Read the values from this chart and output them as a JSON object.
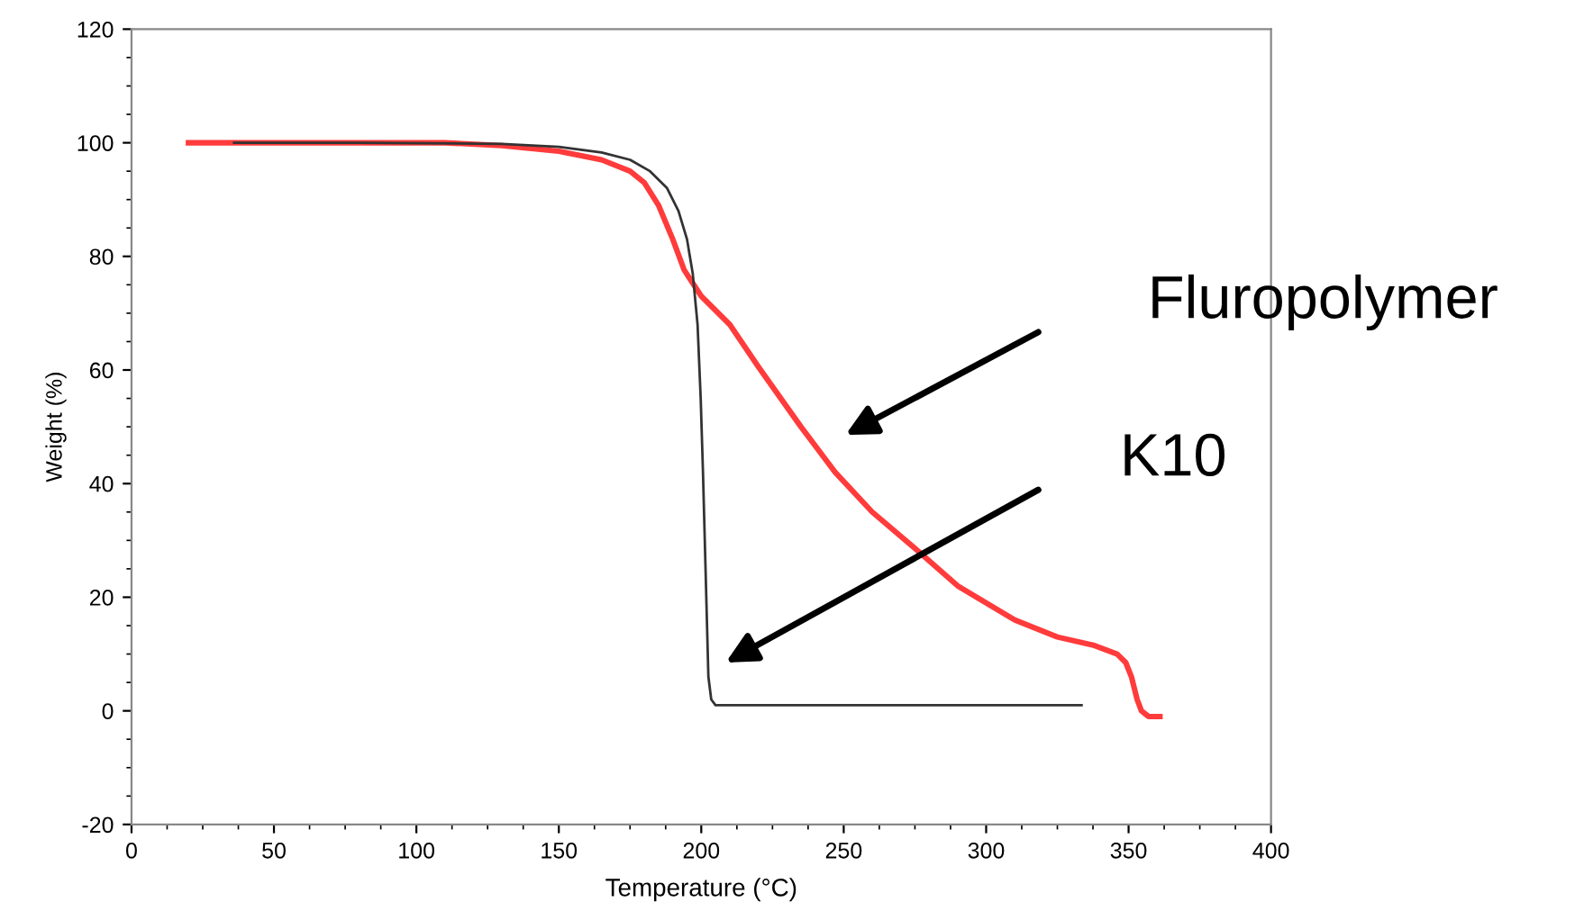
{
  "chart_data": {
    "type": "line",
    "xlabel": "Temperature (°C)",
    "ylabel": "Weight (%)",
    "xlim": [
      0,
      400
    ],
    "xticks": [
      0,
      50,
      100,
      150,
      200,
      250,
      300,
      350,
      400
    ],
    "ylim": [
      -20,
      120
    ],
    "yticks": [
      -20,
      0,
      20,
      40,
      60,
      80,
      100,
      120
    ],
    "grid": false,
    "legend": false,
    "marker": "none",
    "line_style": "solid",
    "series": [
      {
        "color": "#ff3b3b",
        "x": [
          20,
          60,
          110,
          130,
          150,
          165,
          175,
          180,
          185,
          190,
          194,
          200,
          210,
          220,
          235,
          247,
          260,
          275,
          290,
          310,
          325,
          338,
          346,
          349,
          351,
          353,
          354.5,
          357,
          361
        ],
        "values": [
          100,
          100,
          100,
          99.5,
          98.5,
          97,
          95,
          93,
          89,
          83,
          77.6,
          73,
          68,
          60.6,
          50,
          42,
          35,
          28.6,
          22,
          16,
          13,
          11.5,
          10,
          8.5,
          6,
          2,
          0,
          -1,
          -1
        ]
      },
      {
        "color": "#333333",
        "x": [
          36,
          80,
          130,
          150,
          165,
          175,
          182,
          188,
          192,
          195,
          197,
          198.7,
          199.8,
          200.6,
          201.5,
          202.5,
          203.5,
          205,
          250,
          333.5
        ],
        "values": [
          100,
          100,
          99.8,
          99.3,
          98.3,
          97,
          95,
          92,
          88,
          83,
          77,
          68,
          55,
          42,
          25,
          6,
          2,
          1,
          1,
          1
        ]
      }
    ],
    "annotations": [
      "Fluropolymer",
      "K10"
    ]
  }
}
